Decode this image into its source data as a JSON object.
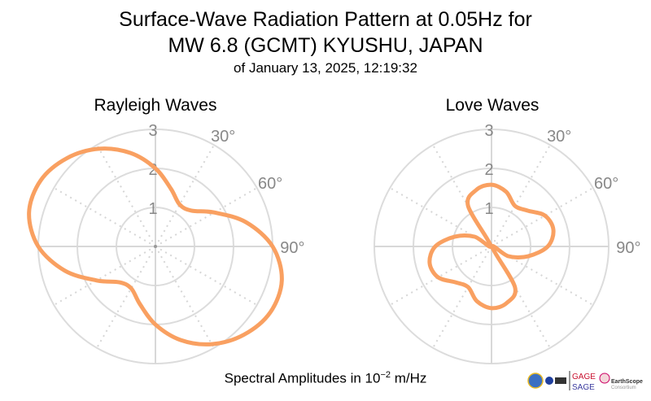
{
  "chart_data": [
    {
      "type": "polar-line",
      "title": "Rayleigh Waves",
      "theta_deg": [
        0,
        15,
        30,
        45,
        60,
        75,
        90,
        105,
        120,
        135,
        150,
        165,
        180,
        195,
        210,
        225,
        240,
        255,
        270,
        285,
        300,
        315,
        330,
        345
      ],
      "r": [
        2.0,
        1.53,
        1.24,
        1.3,
        1.74,
        2.4,
        3.0,
        3.35,
        3.39,
        3.2,
        2.89,
        2.48,
        2.0,
        1.53,
        1.24,
        1.3,
        1.74,
        2.4,
        3.0,
        3.35,
        3.39,
        3.2,
        2.89,
        2.48
      ],
      "rlim": [
        0,
        3
      ],
      "r_ticks": [
        "1",
        "2",
        "3"
      ],
      "theta_tick_labels": [
        "30°",
        "60°",
        "90°"
      ],
      "theta_direction": "clockwise",
      "theta_zero": "north",
      "color": "#f9a061"
    },
    {
      "type": "polar-line",
      "title": "Love Waves",
      "theta_deg": [
        0,
        15,
        30,
        45,
        60,
        75,
        90,
        105,
        120,
        135,
        150,
        165,
        180,
        195,
        210,
        225,
        240,
        255,
        270,
        285,
        300,
        315,
        330,
        345
      ],
      "r": [
        1.58,
        1.45,
        1.2,
        1.3,
        1.58,
        1.64,
        1.44,
        0.97,
        0.5,
        0.03,
        1.2,
        1.5,
        1.58,
        1.45,
        1.2,
        1.3,
        1.58,
        1.64,
        1.44,
        0.97,
        0.5,
        0.03,
        1.2,
        1.5
      ],
      "rlim": [
        0,
        3
      ],
      "r_ticks": [
        "1",
        "2",
        "3"
      ],
      "theta_tick_labels": [
        "30°",
        "60°",
        "90°"
      ],
      "theta_direction": "clockwise",
      "theta_zero": "north",
      "color": "#f9a061"
    }
  ],
  "title_line1": "Surface-Wave Radiation Pattern at 0.05Hz for",
  "title_line2": "MW 6.8 (GCMT) KYUSHU, JAPAN",
  "subtitle": "of January 13, 2025, 12:19:32",
  "footer": {
    "prefix": "Spectral Amplitudes in 10",
    "exponent": "−2",
    "suffix": " m/Hz"
  },
  "logos": {
    "gage": "GAGE",
    "sage": "SAGE",
    "earthscope": "EarthScope",
    "consortium": "Consortium"
  }
}
